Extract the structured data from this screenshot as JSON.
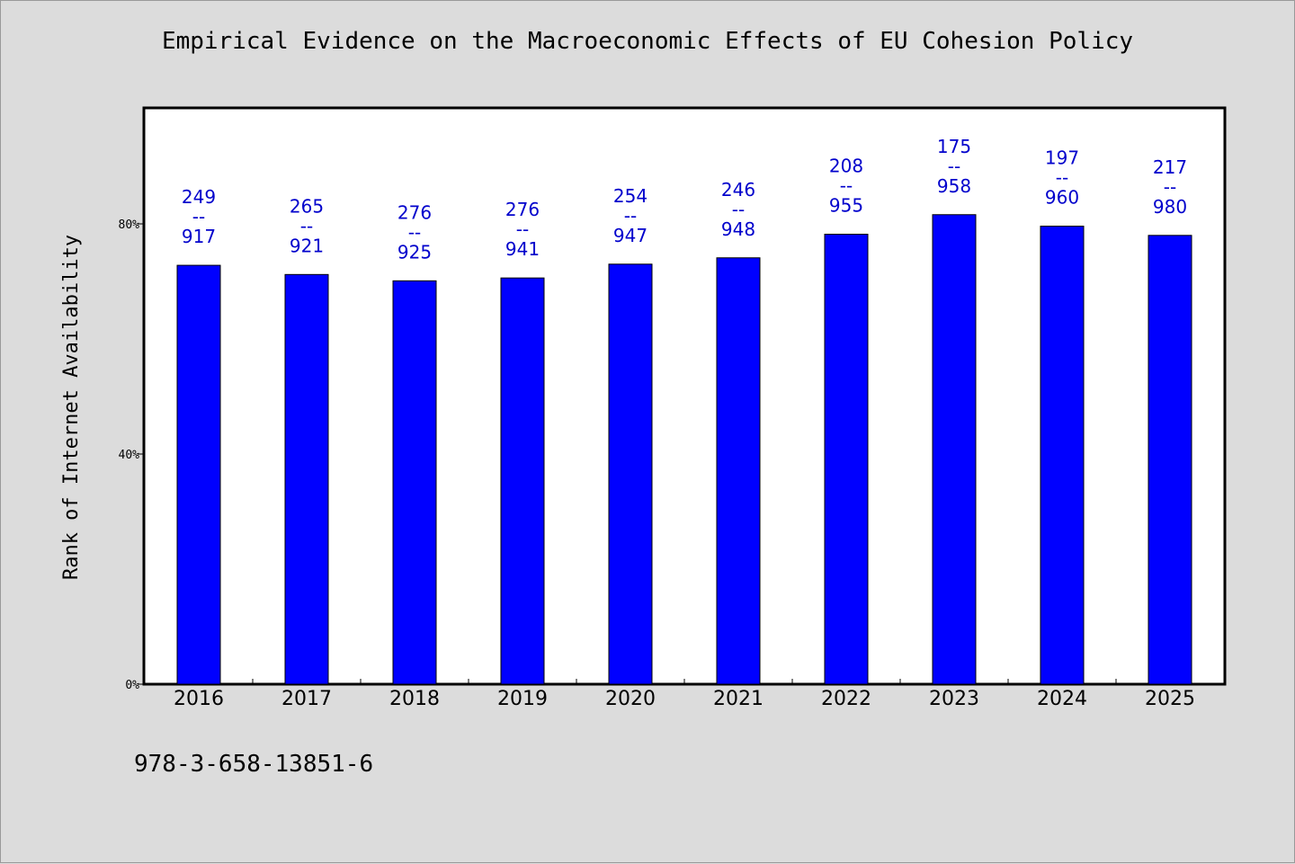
{
  "chart_data": {
    "type": "bar",
    "title": "Empirical Evidence on the Macroeconomic Effects of EU Cohesion Policy",
    "ylabel": "Rank of Internet Availability",
    "xlabel": "",
    "categories": [
      "2016",
      "2017",
      "2018",
      "2019",
      "2020",
      "2021",
      "2022",
      "2023",
      "2024",
      "2025"
    ],
    "values": [
      72.8,
      71.2,
      70.1,
      70.6,
      73.0,
      74.1,
      78.2,
      81.6,
      79.6,
      78.0
    ],
    "value_labels": [
      [
        "249",
        "--",
        "917"
      ],
      [
        "265",
        "--",
        "921"
      ],
      [
        "276",
        "--",
        "925"
      ],
      [
        "276",
        "--",
        "941"
      ],
      [
        "254",
        "--",
        "947"
      ],
      [
        "246",
        "--",
        "948"
      ],
      [
        "208",
        "--",
        "955"
      ],
      [
        "175",
        "--",
        "958"
      ],
      [
        "197",
        "--",
        "960"
      ],
      [
        "217",
        "--",
        "980"
      ]
    ],
    "ylim": [
      0,
      100
    ],
    "yticks": [
      0,
      40,
      80
    ],
    "ytick_labels": [
      "0%",
      "40%",
      "80%"
    ],
    "bar_color": "#0000ff",
    "label_color": "#0000cc",
    "plot_background": "#ffffff",
    "page_background": "#dcdcdc",
    "grid": false,
    "legend": "none"
  },
  "footer": {
    "isbn": "978-3-658-13851-6"
  }
}
